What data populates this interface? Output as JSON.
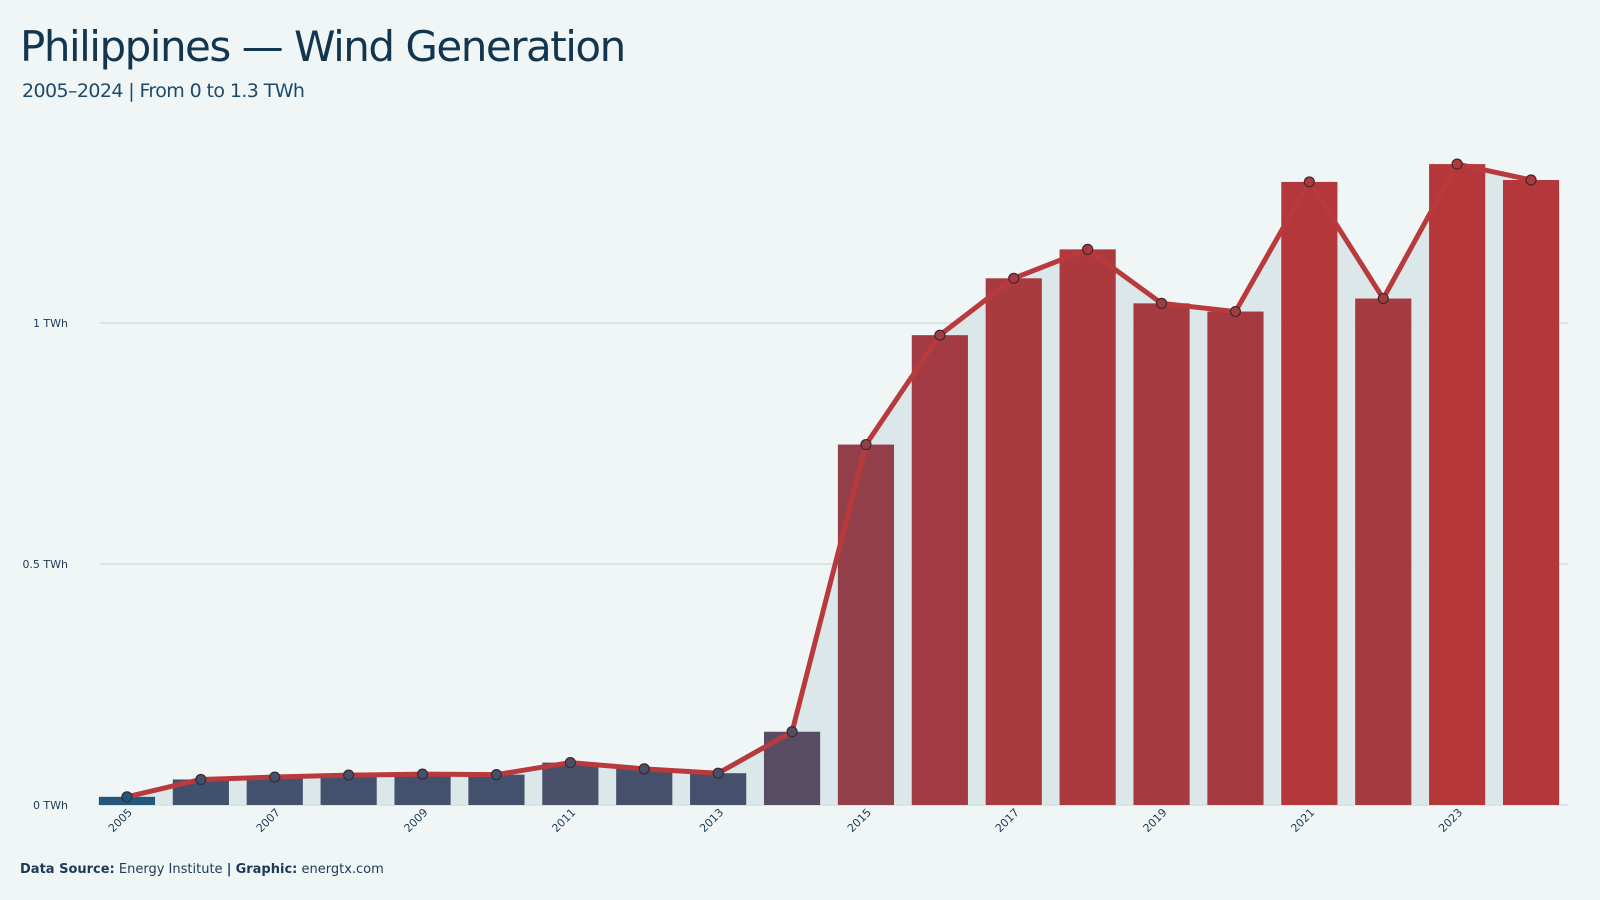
{
  "title": "Philippines — Wind Generation",
  "subtitle": "2005–2024 | From 0 to 1.3 TWh",
  "footer": {
    "source_label": "Data Source:",
    "source": "Energy Institute",
    "separator": "|",
    "graphic_label": "Graphic:",
    "graphic": "energtx.com"
  },
  "colors": {
    "background": "#f0f6f6",
    "area": "#d8e6e7",
    "line": "#b83a3c",
    "low": "#23587b",
    "high": "#b5373a",
    "grid": "#d3dde0"
  },
  "chart_data": {
    "type": "bar",
    "title": "Philippines — Wind Generation",
    "subtitle": "2005–2024 | From 0 to 1.3 TWh",
    "categories": [
      "2005",
      "2006",
      "2007",
      "2008",
      "2009",
      "2010",
      "2011",
      "2012",
      "2013",
      "2014",
      "2015",
      "2016",
      "2017",
      "2018",
      "2019",
      "2020",
      "2021",
      "2022",
      "2023",
      "2024"
    ],
    "x_tick_labels": [
      "2005",
      "2007",
      "2009",
      "2011",
      "2013",
      "2015",
      "2017",
      "2019",
      "2021",
      "2023"
    ],
    "values": [
      0.017,
      0.053,
      0.058,
      0.062,
      0.064,
      0.063,
      0.088,
      0.075,
      0.066,
      0.152,
      0.748,
      0.975,
      1.093,
      1.153,
      1.041,
      1.024,
      1.293,
      1.051,
      1.33,
      1.297
    ],
    "overlay": "line with markers and shaded area over bars",
    "ylim": [
      0,
      1.38
    ],
    "y_ticks": [
      {
        "value": 0,
        "label": "0 TWh"
      },
      {
        "value": 0.5,
        "label": "0.5 TWh"
      },
      {
        "value": 1,
        "label": "1 TWh"
      }
    ],
    "grid": true,
    "legend": "none"
  }
}
